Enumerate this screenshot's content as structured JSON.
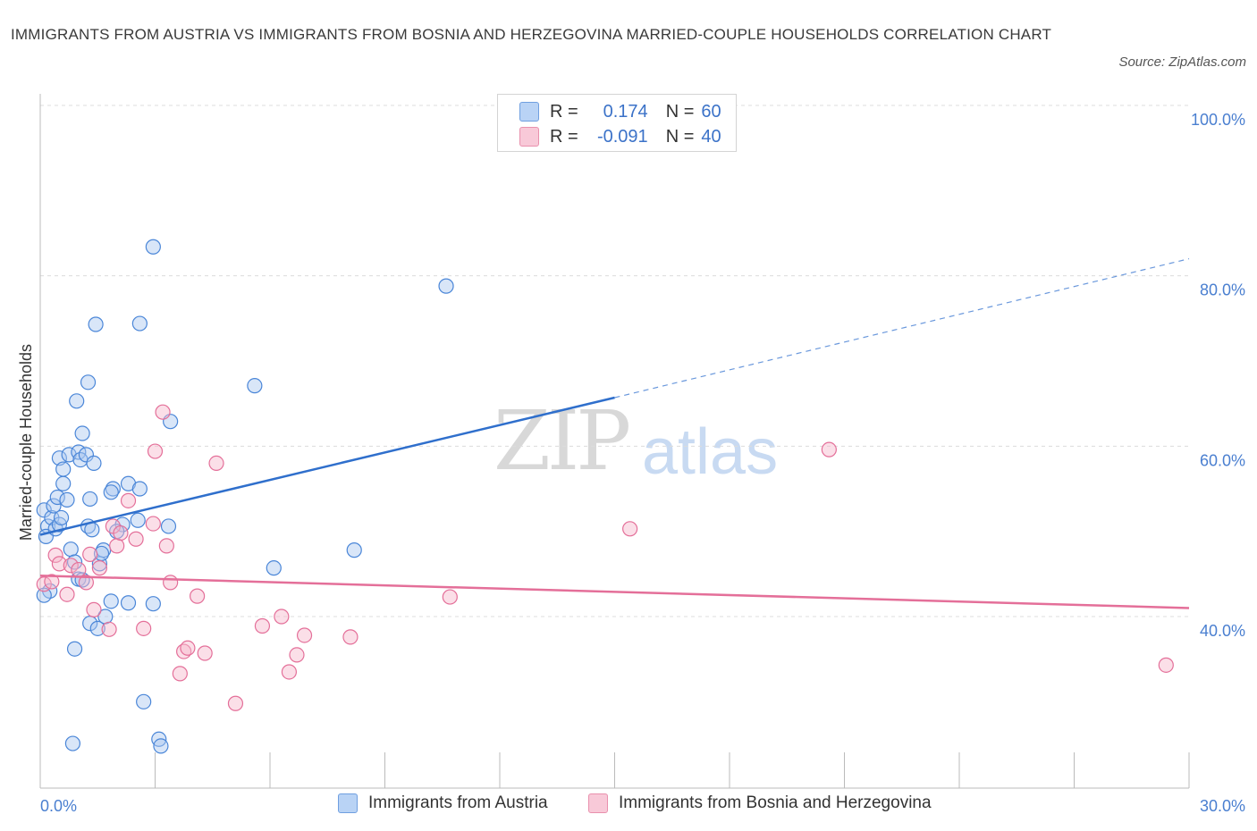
{
  "title": "IMMIGRANTS FROM AUSTRIA VS IMMIGRANTS FROM BOSNIA AND HERZEGOVINA MARRIED-COUPLE HOUSEHOLDS CORRELATION CHART",
  "source": "Source: ZipAtlas.com",
  "watermark": {
    "zip": "ZIP",
    "atlas": "atlas"
  },
  "legend": {
    "rows": [
      {
        "r_label": "R =",
        "r_value": "0.174",
        "n_label": "N =",
        "n_value": "60",
        "color": "#b9d3f5",
        "border": "#6f9fe0"
      },
      {
        "r_label": "R =",
        "r_value": "-0.091",
        "n_label": "N =",
        "n_value": "40",
        "color": "#f8c9d8",
        "border": "#e990ad"
      }
    ]
  },
  "bottom_legend": {
    "austria": "Immigrants from Austria",
    "bosnia": "Immigrants from Bosnia and Herzegovina"
  },
  "chart_data": {
    "type": "scatter",
    "xlabel": "",
    "ylabel": "Married-couple Households",
    "xlim": [
      0,
      30
    ],
    "ylim": [
      20,
      100
    ],
    "x_tick_labels": [
      "0.0%",
      "30.0%"
    ],
    "y_tick_labels": [
      "100.0%",
      "80.0%",
      "60.0%",
      "40.0%"
    ],
    "y_ticks": [
      100,
      80,
      60,
      40
    ],
    "grid": true,
    "series": [
      {
        "name": "Immigrants from Austria",
        "color": "#4a86d8",
        "fill": "rgba(170,200,240,0.45)",
        "trend": {
          "x0": 0,
          "y0": 49.6,
          "x1": 15,
          "y1": 65.7,
          "dash_to_x": 30,
          "dash_to_y": 82.0
        },
        "points": [
          [
            0.1,
            52.5
          ],
          [
            0.2,
            50.6
          ],
          [
            0.15,
            49.4
          ],
          [
            0.3,
            51.6
          ],
          [
            0.35,
            53.0
          ],
          [
            0.4,
            50.3
          ],
          [
            0.5,
            50.8
          ],
          [
            0.55,
            51.6
          ],
          [
            0.45,
            54.0
          ],
          [
            0.6,
            55.6
          ],
          [
            0.7,
            53.7
          ],
          [
            0.8,
            47.9
          ],
          [
            0.9,
            46.4
          ],
          [
            0.5,
            58.6
          ],
          [
            0.6,
            57.3
          ],
          [
            0.75,
            59.0
          ],
          [
            1.0,
            59.3
          ],
          [
            1.05,
            58.4
          ],
          [
            1.1,
            61.5
          ],
          [
            1.2,
            59.0
          ],
          [
            1.4,
            58.0
          ],
          [
            1.3,
            53.8
          ],
          [
            1.25,
            50.6
          ],
          [
            1.35,
            50.2
          ],
          [
            0.95,
            65.3
          ],
          [
            1.25,
            67.5
          ],
          [
            1.45,
            74.3
          ],
          [
            1.65,
            47.8
          ],
          [
            1.55,
            46.2
          ],
          [
            1.0,
            44.4
          ],
          [
            1.1,
            44.3
          ],
          [
            1.9,
            55.0
          ],
          [
            1.85,
            54.6
          ],
          [
            2.3,
            55.6
          ],
          [
            2.6,
            55.0
          ],
          [
            2.55,
            51.3
          ],
          [
            2.15,
            50.8
          ],
          [
            2.0,
            50.0
          ],
          [
            1.3,
            39.2
          ],
          [
            1.5,
            38.6
          ],
          [
            1.7,
            40.0
          ],
          [
            1.85,
            41.8
          ],
          [
            2.3,
            41.6
          ],
          [
            0.9,
            36.2
          ],
          [
            2.7,
            30.0
          ],
          [
            0.85,
            25.1
          ],
          [
            3.1,
            25.6
          ],
          [
            3.15,
            24.8
          ],
          [
            2.95,
            83.4
          ],
          [
            2.6,
            74.4
          ],
          [
            3.4,
            62.9
          ],
          [
            3.35,
            50.6
          ],
          [
            5.6,
            67.1
          ],
          [
            6.1,
            45.7
          ],
          [
            8.2,
            47.8
          ],
          [
            10.6,
            78.8
          ],
          [
            2.95,
            41.5
          ],
          [
            1.6,
            47.4
          ],
          [
            0.25,
            43.0
          ],
          [
            0.1,
            42.5
          ]
        ]
      },
      {
        "name": "Immigrants from Bosnia and Herzegovina",
        "color": "#e46f99",
        "fill": "rgba(246,185,205,0.45)",
        "trend": {
          "x0": 0,
          "y0": 44.8,
          "x1": 30,
          "y1": 41.0
        },
        "points": [
          [
            0.1,
            43.8
          ],
          [
            0.3,
            44.1
          ],
          [
            0.4,
            47.2
          ],
          [
            0.5,
            46.2
          ],
          [
            0.7,
            42.6
          ],
          [
            0.8,
            46.0
          ],
          [
            1.0,
            45.5
          ],
          [
            1.2,
            44.0
          ],
          [
            1.3,
            47.3
          ],
          [
            1.4,
            40.8
          ],
          [
            1.55,
            45.7
          ],
          [
            1.8,
            38.5
          ],
          [
            1.9,
            50.6
          ],
          [
            2.0,
            48.3
          ],
          [
            2.1,
            49.8
          ],
          [
            2.3,
            53.6
          ],
          [
            2.5,
            49.1
          ],
          [
            2.7,
            38.6
          ],
          [
            2.95,
            50.9
          ],
          [
            3.0,
            59.4
          ],
          [
            3.2,
            64.0
          ],
          [
            3.3,
            48.3
          ],
          [
            3.4,
            44.0
          ],
          [
            3.65,
            33.3
          ],
          [
            3.75,
            35.9
          ],
          [
            3.85,
            36.3
          ],
          [
            4.1,
            42.4
          ],
          [
            4.3,
            35.7
          ],
          [
            4.6,
            58.0
          ],
          [
            5.1,
            29.8
          ],
          [
            5.8,
            38.9
          ],
          [
            6.3,
            40.0
          ],
          [
            6.5,
            33.5
          ],
          [
            6.7,
            35.5
          ],
          [
            6.9,
            37.8
          ],
          [
            8.1,
            37.6
          ],
          [
            10.7,
            42.3
          ],
          [
            15.4,
            50.3
          ],
          [
            20.6,
            59.6
          ],
          [
            29.4,
            34.3
          ]
        ]
      }
    ]
  }
}
